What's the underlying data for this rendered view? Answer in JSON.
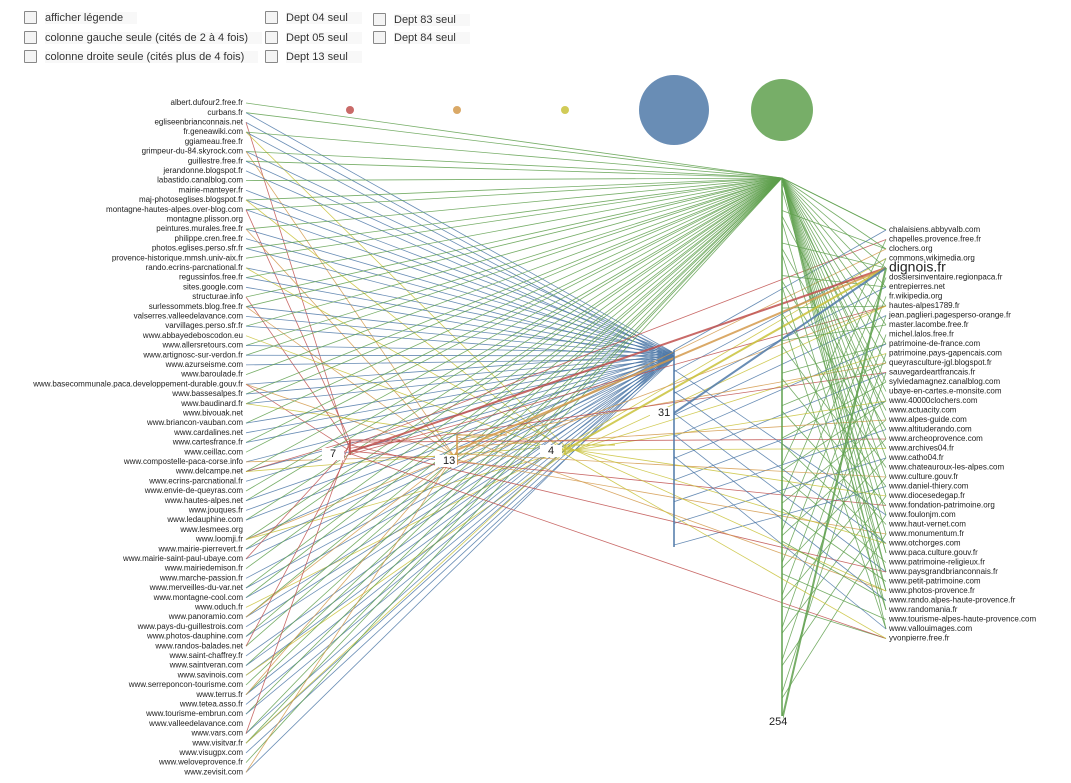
{
  "controls": [
    "afficher légende",
    "colonne gauche seule (cités de 2 à 4 fois)",
    "colonne droite seule (cités plus de 4 fois)",
    "Dept 04 seul",
    "Dept 05 seul",
    "Dept 13 seul",
    "Dept 83 seul",
    "Dept 84 seul"
  ],
  "left_sites": [
    "albert.dufour2.free.fr",
    "curbans.fr",
    "egliseenbrianconnais.net",
    "fr.geneawiki.com",
    "ggiameau.free.fr",
    "grimpeur-du-84.skyrock.com",
    "guillestre.free.fr",
    "jerandonne.blogspot.fr",
    "labastido.canalblog.com",
    "mairie-manteyer.fr",
    "maj-photoseglises.blogspot.fr",
    "montagne-hautes-alpes.over-blog.com",
    "montagne.plisson.org",
    "peintures.murales.free.fr",
    "philippe.cren.free.fr",
    "photos.eglises.perso.sfr.fr",
    "provence-historique.mmsh.univ-aix.fr",
    "rando.ecrins-parcnational.fr",
    "regussinfos.free.fr",
    "sites.google.com",
    "structurae.info",
    "surlessommets.blog.free.fr",
    "valserres.valleedelavance.com",
    "varvillages.perso.sfr.fr",
    "www.abbayedeboscodon.eu",
    "www.allersretours.com",
    "www.artignosc-sur-verdon.fr",
    "www.azurseisme.com",
    "www.baroulade.fr",
    "www.basecommunale.paca.developpement-durable.gouv.fr",
    "www.bassesalpes.fr",
    "www.baudinard.fr",
    "www.bivouak.net",
    "www.briancon-vauban.com",
    "www.cardalines.net",
    "www.cartesfrance.fr",
    "www.ceillac.com",
    "www.compostelle-paca-corse.info",
    "www.delcampe.net",
    "www.ecrins-parcnational.fr",
    "www.envie-de-queyras.com",
    "www.hautes-alpes.net",
    "www.jouques.fr",
    "www.ledauphine.com",
    "www.lesmees.org",
    "www.loomji.fr",
    "www.mairie-pierrevert.fr",
    "www.mairie-saint-paul-ubaye.com",
    "www.mairiedemison.fr",
    "www.marche-passion.fr",
    "www.merveilles-du-var.net",
    "www.montagne-cool.com",
    "www.oduch.fr",
    "www.panoramio.com",
    "www.pays-du-guillestrois.com",
    "www.photos-dauphine.com",
    "www.randos-balades.net",
    "www.saint-chaffrey.fr",
    "www.saintveran.com",
    "www.savinois.com",
    "www.serreponcon-tourisme.com",
    "www.terrus.fr",
    "www.tetea.asso.fr",
    "www.tourisme-embrun.com",
    "www.valleedelavance.com",
    "www.vars.com",
    "www.visitvar.fr",
    "www.visugpx.com",
    "www.weloveprovence.fr",
    "www.zevisit.com"
  ],
  "right_sites": [
    "chalaisiens.abbyvalb.com",
    "chapelles.provence.free.fr",
    "clochers.org",
    "commons.wikimedia.org",
    "dignois.fr",
    "dossiersinventaire.regionpaca.fr",
    "entrepierres.net",
    "fr.wikipedia.org",
    "hautes-alpes1789.fr",
    "jean.paglieri.pagesperso-orange.fr",
    "master.lacombe.free.fr",
    "michel.lalos.free.fr",
    "patrimoine-de-france.com",
    "patrimoine.pays-gapencais.com",
    "queyrasculture-jgl.blogspot.fr",
    "sauvegardeartfrancais.fr",
    "sylviedamagnez.canalblog.com",
    "ubaye-en-cartes.e-monsite.com",
    "www.40000clochers.com",
    "www.actuacity.com",
    "www.alpes-guide.com",
    "www.altituderando.com",
    "www.archeoprovence.com",
    "www.archives04.fr",
    "www.catho04.fr",
    "www.chateauroux-les-alpes.com",
    "www.culture.gouv.fr",
    "www.daniel-thiery.com",
    "www.diocesedegap.fr",
    "www.fondation-patrimoine.org",
    "www.foulonjm.com",
    "www.haut-vernet.com",
    "www.monumentum.fr",
    "www.otchorges.com",
    "www.paca.culture.gouv.fr",
    "www.patrimoine-religieux.fr",
    "www.paysgrandbrianconnais.fr",
    "www.petit-patrimoine.com",
    "www.photos-provence.fr",
    "www.rando.alpes-haute-provence.fr",
    "www.randomania.fr",
    "www.tourisme-alpes-haute-provence.com",
    "www.vallouimages.com",
    "yvonpierre.free.fr"
  ],
  "hubs": [
    {
      "label": 7,
      "color": "#c0504d"
    },
    {
      "label": 13,
      "color": "#d49a4c"
    },
    {
      "label": 4,
      "color": "#c9c23a"
    },
    {
      "label": 31,
      "color": "#4f79a8"
    },
    {
      "label": 254,
      "color": "#5fa04e"
    }
  ]
}
